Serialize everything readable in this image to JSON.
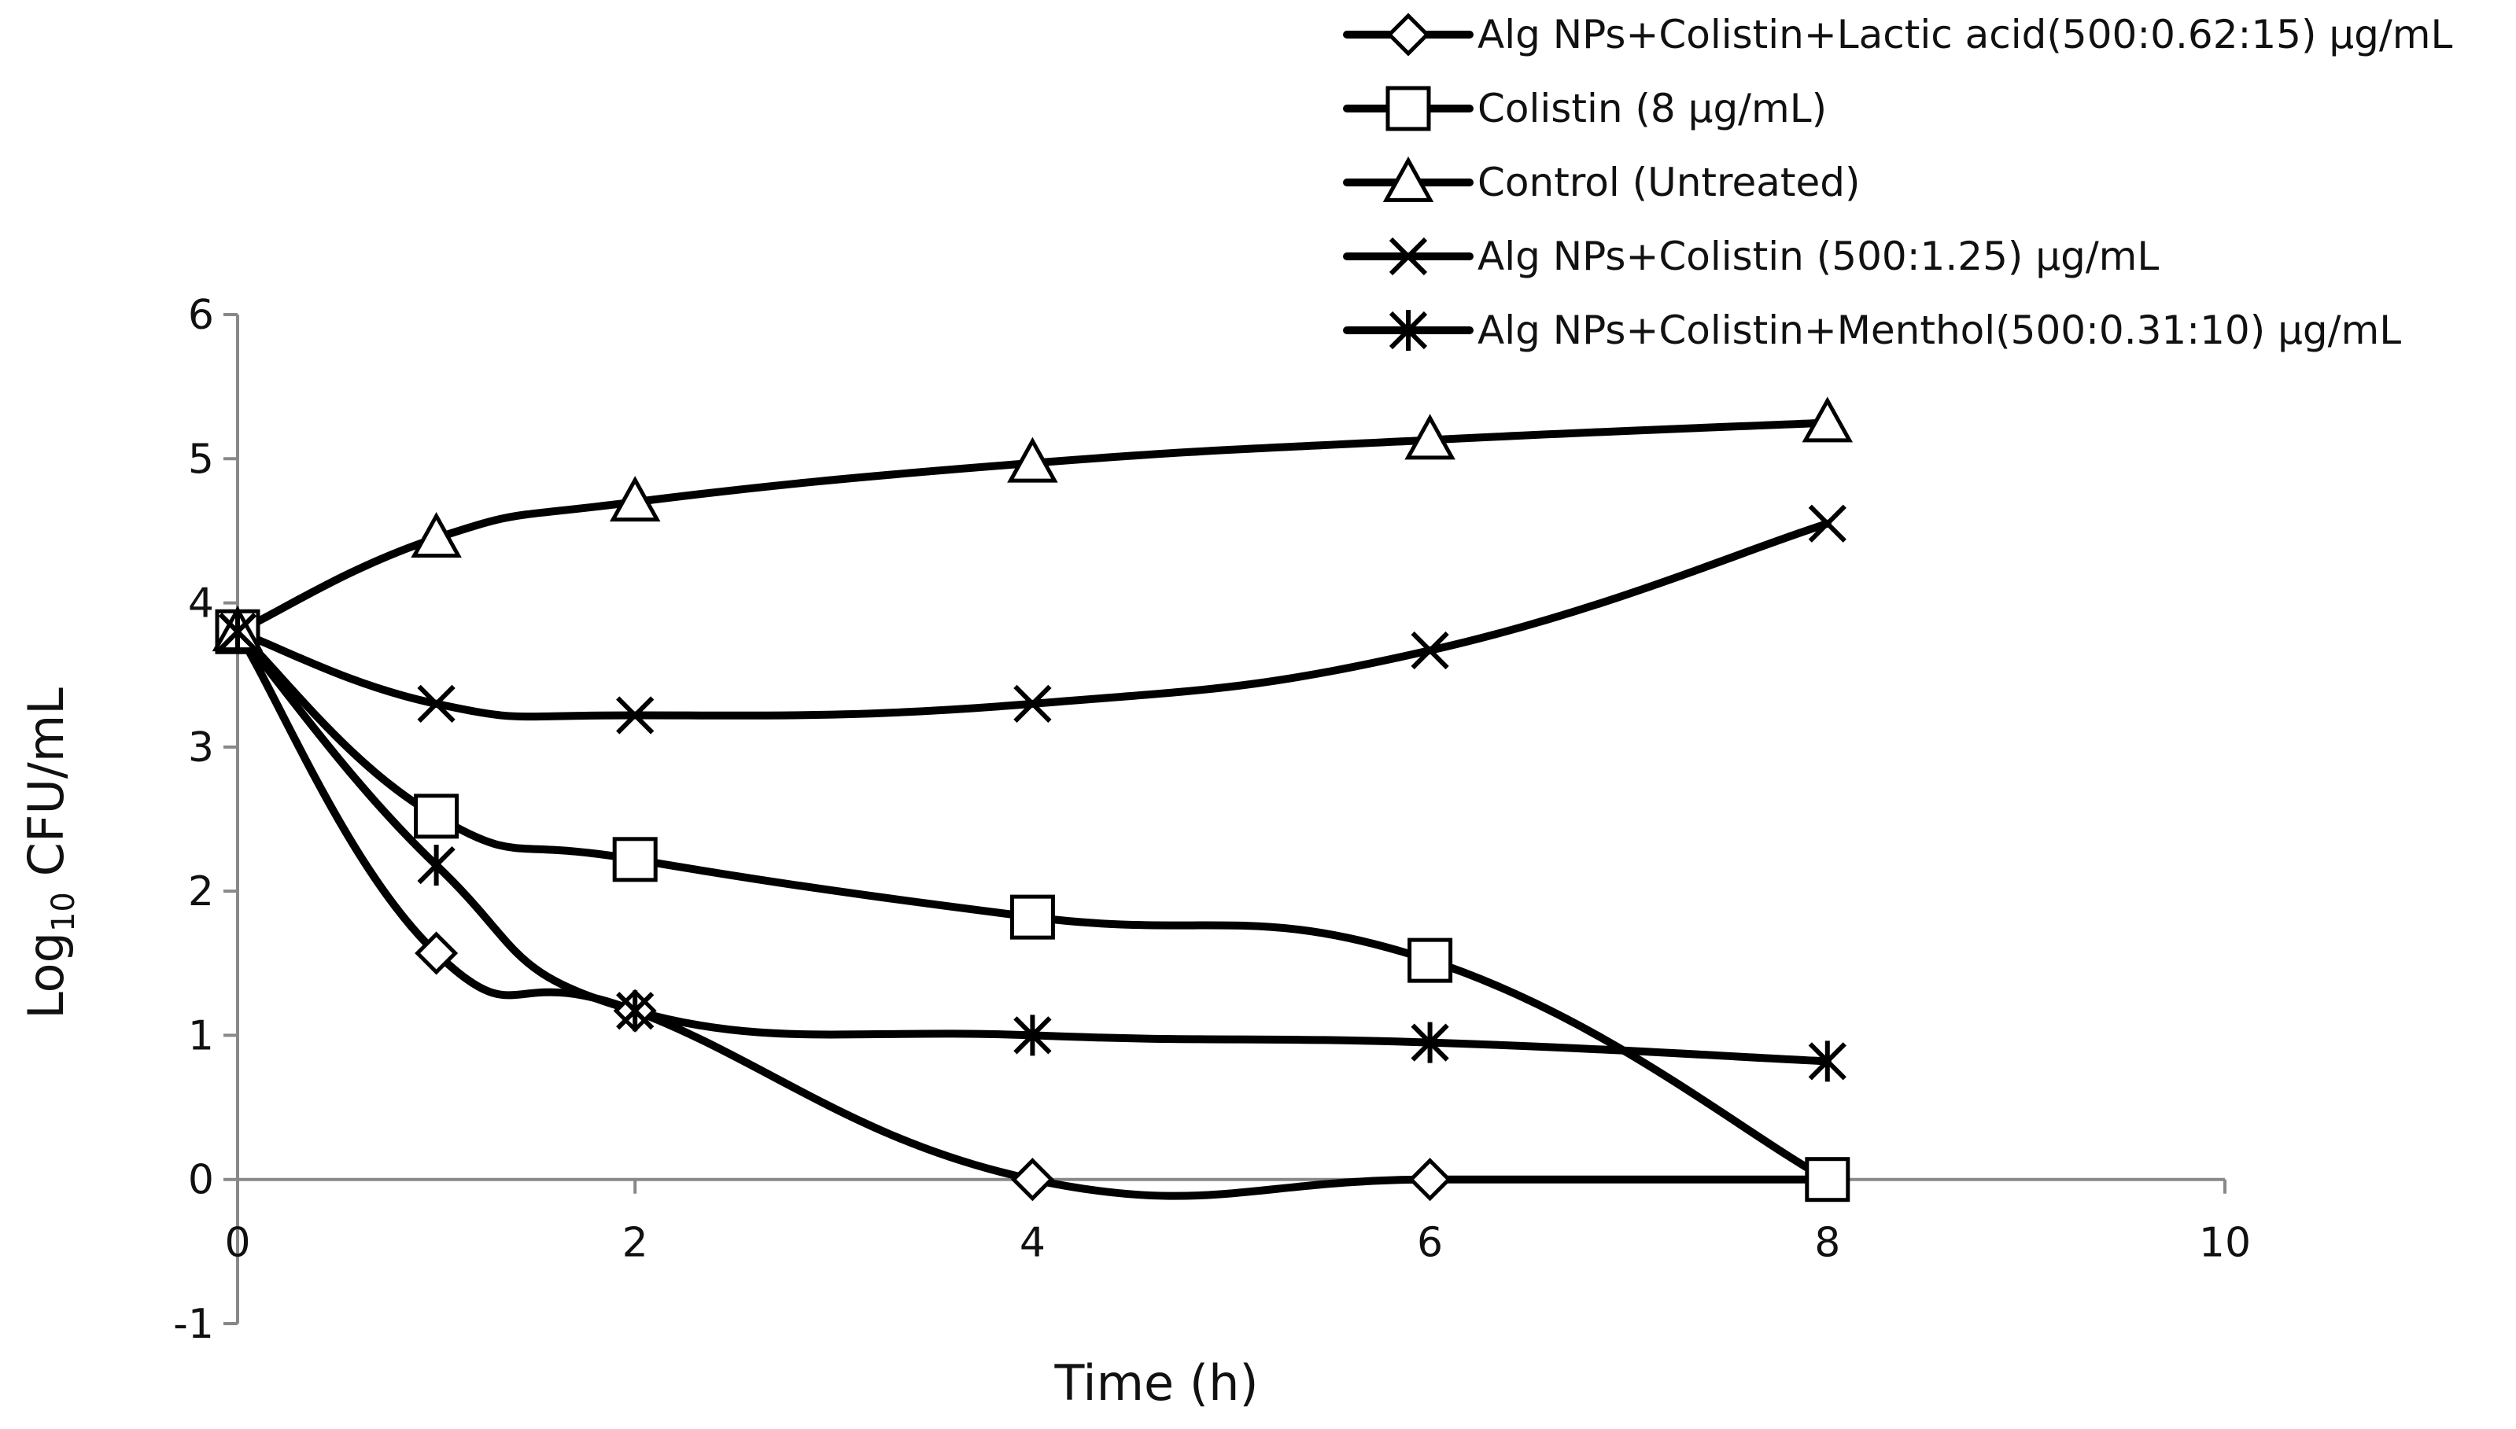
{
  "chart_data": {
    "type": "line",
    "title": "",
    "xlabel": "Time (h)",
    "ylabel_main": "Log",
    "ylabel_sub": "10",
    "ylabel_rest": " CFU/mL",
    "xlim": [
      0,
      10
    ],
    "ylim": [
      -1,
      6
    ],
    "xticks": [
      0,
      2,
      4,
      6,
      8,
      10
    ],
    "yticks": [
      -1,
      0,
      1,
      2,
      3,
      4,
      5,
      6
    ],
    "grid": false,
    "legend_position": "top-right",
    "line_color": "#000000",
    "series": [
      {
        "name": "Alg NPs+Colistin+Lactic acid(500:0.62:15) µg/mL",
        "marker": "diamond",
        "x": [
          0,
          1,
          2,
          4,
          6,
          8
        ],
        "y": [
          3.8,
          1.57,
          1.17,
          0.0,
          0.0,
          0.0
        ]
      },
      {
        "name": "Colistin (8 µg/mL)",
        "marker": "square",
        "x": [
          0,
          1,
          2,
          4,
          6,
          8
        ],
        "y": [
          3.8,
          2.52,
          2.22,
          1.82,
          1.52,
          0.0
        ]
      },
      {
        "name": "Control (Untreated)",
        "marker": "triangle",
        "x": [
          0,
          1,
          2,
          4,
          6,
          8
        ],
        "y": [
          3.8,
          4.45,
          4.7,
          4.97,
          5.13,
          5.25
        ]
      },
      {
        "name": "Alg NPs+Colistin (500:1.25) µg/mL",
        "marker": "x",
        "x": [
          0,
          1,
          2,
          4,
          6,
          8
        ],
        "y": [
          3.8,
          3.3,
          3.22,
          3.3,
          3.67,
          4.55
        ]
      },
      {
        "name": "Alg NPs+Colistin+Menthol(500:0.31:10) µg/mL",
        "marker": "star",
        "x": [
          0,
          1,
          2,
          4,
          6,
          8
        ],
        "y": [
          3.8,
          2.18,
          1.17,
          1.0,
          0.95,
          0.82
        ]
      }
    ]
  }
}
